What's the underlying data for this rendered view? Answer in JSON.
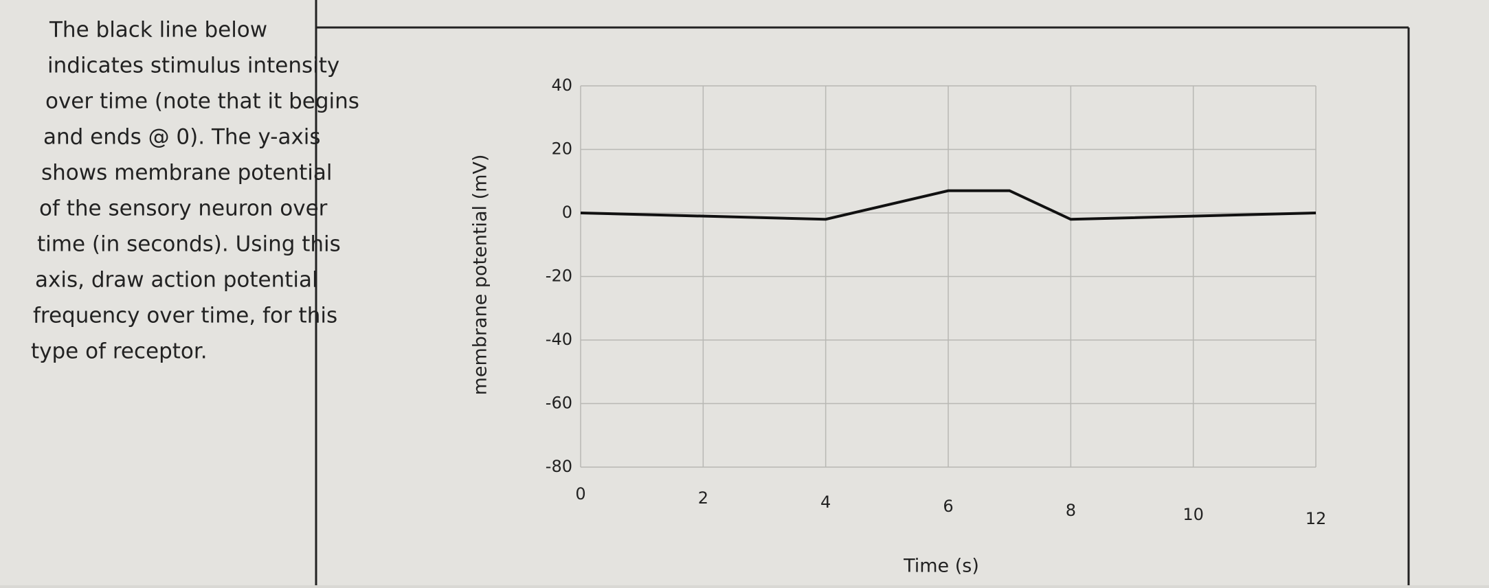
{
  "prompt_lines": [
    "The black line below",
    "indicates stimulus intensity",
    "over time (note that it begins",
    "and ends @ 0). The y-axis",
    "shows membrane potential",
    "of the sensory neuron over",
    "time (in seconds). Using this",
    "axis, draw action potential",
    "frequency over time, for this",
    "type of receptor."
  ],
  "chart_data": {
    "type": "line",
    "x_label": "Time (s)",
    "y_label": "membrane potential (mV)",
    "x": [
      0,
      4,
      6,
      7,
      8,
      12
    ],
    "series": [
      {
        "color": "#111111",
        "values": [
          0,
          -2,
          7,
          7,
          -2,
          0
        ]
      }
    ],
    "xlim": [
      0,
      12
    ],
    "xticks": [
      0,
      2,
      4,
      6,
      8,
      10,
      12
    ],
    "ylim": [
      -80,
      40
    ],
    "yticks": [
      -80,
      -60,
      -40,
      -20,
      0,
      20,
      40
    ],
    "grid": true
  }
}
